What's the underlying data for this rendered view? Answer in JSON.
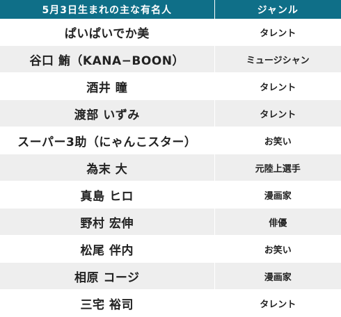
{
  "header": {
    "col_name": "5月3日生まれの主な有名人",
    "col_genre": "ジャンル"
  },
  "rows": [
    {
      "name": "ぱいぱいでか美",
      "genre": "タレント"
    },
    {
      "name": "谷口 鮪（KANA−BOON）",
      "genre": "ミュージシャン"
    },
    {
      "name": "酒井 瞳",
      "genre": "タレント"
    },
    {
      "name": "渡部 いずみ",
      "genre": "タレント"
    },
    {
      "name": "スーパー3助（にゃんこスター）",
      "genre": "お笑い"
    },
    {
      "name": "為末 大",
      "genre": "元陸上選手"
    },
    {
      "name": "真島 ヒロ",
      "genre": "漫画家"
    },
    {
      "name": "野村 宏伸",
      "genre": "俳優"
    },
    {
      "name": "松尾 伴内",
      "genre": "お笑い"
    },
    {
      "name": "相原 コージ",
      "genre": "漫画家"
    },
    {
      "name": "三宅 裕司",
      "genre": "タレント"
    }
  ]
}
